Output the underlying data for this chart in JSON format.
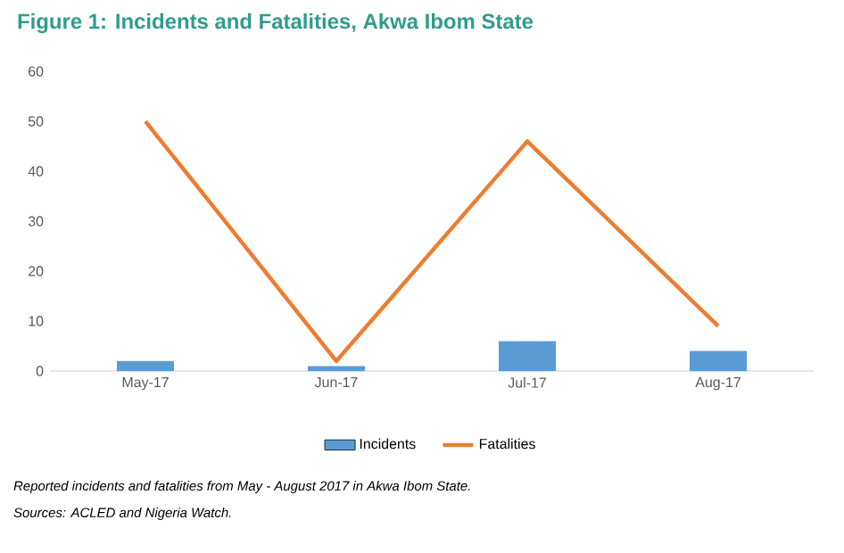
{
  "chart_data": {
    "type": "bar",
    "title": "Figure 1: Incidents and Fatalities, Akwa Ibom State",
    "categories": [
      "May-17",
      "Jun-17",
      "Jul-17",
      "Aug-17"
    ],
    "series": [
      {
        "name": "Incidents",
        "color": "#5b9bd5",
        "values": [
          2,
          1,
          6,
          4
        ]
      },
      {
        "name": "Fatalities",
        "type": "line",
        "color": "#ed7d31",
        "values": [
          50,
          2,
          46,
          9
        ]
      }
    ],
    "ylim": [
      0,
      60
    ],
    "yticks": [
      0,
      10,
      20,
      30,
      40,
      50,
      60
    ],
    "legend": "bottom",
    "annotations": [
      "Reported incidents and  fatalities from May - August 2017 in Akwa Ibom State.",
      "Sources: ACLED and Nigeria Watch."
    ]
  }
}
